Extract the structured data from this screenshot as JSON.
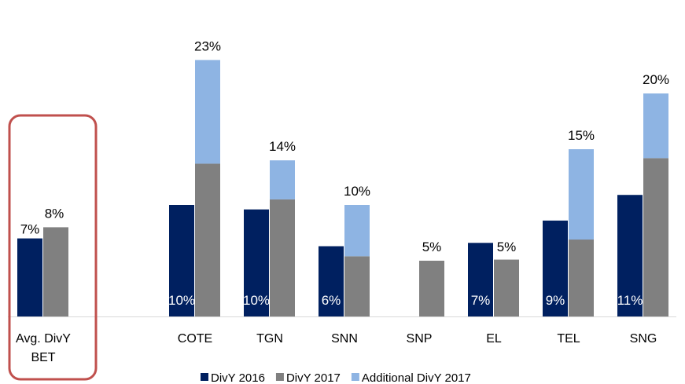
{
  "chart_data": {
    "type": "bar",
    "categories": [
      "Avg. DivY BET",
      "COTE",
      "TGN",
      "SNN",
      "SNP",
      "EL",
      "TEL",
      "SNG"
    ],
    "series": [
      {
        "name": "DivY 2016",
        "color": "#002060",
        "values": [
          7,
          10,
          9.6,
          6.3,
          null,
          6.6,
          8.6,
          10.9
        ],
        "value_labels": [
          "7%",
          "10%",
          "10%",
          "6%",
          null,
          "7%",
          "9%",
          "11%"
        ]
      },
      {
        "name": "DivY 2017",
        "color": "#808080",
        "values": [
          8,
          13.7,
          10.5,
          5.4,
          5,
          5.1,
          6.9,
          14.2
        ]
      },
      {
        "name": "Additional DivY 2017",
        "color": "#8eb4e3",
        "values": [
          null,
          9.3,
          3.5,
          4.6,
          null,
          null,
          8.1,
          5.8
        ]
      }
    ],
    "totals": [
      8,
      23,
      14,
      10,
      5,
      5,
      15,
      20
    ],
    "total_labels": [
      "8%",
      "23%",
      "14%",
      "10%",
      "5%",
      "5%",
      "15%",
      "20%"
    ]
  }
}
